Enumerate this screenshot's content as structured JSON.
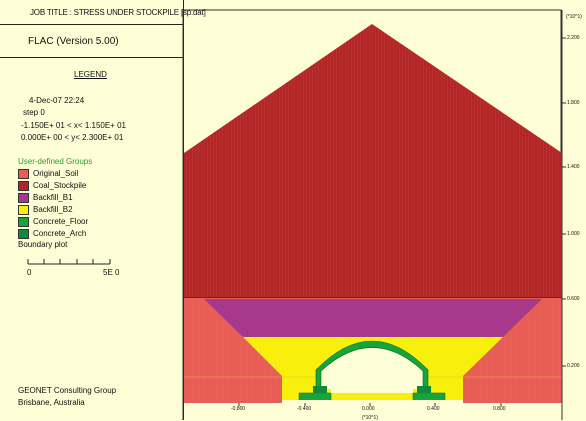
{
  "header": {
    "job_title": "JOB TITLE :   STRESS UNDER STOCKPILE  [sp.dat]"
  },
  "panel": {
    "app_name": "FLAC (Version 5.00)",
    "legend_title": "LEGEND",
    "date_line": "4-Dec-07  22:24",
    "step_line": "step      0",
    "x_range": "-1.150E+ 01 < x<   1.150E+ 01",
    "y_range": " 0.000E+ 00 < y<   2.300E+ 01",
    "groups_title": "User-defined Groups",
    "groups": [
      {
        "label": "Original_Soil",
        "color": "#e85e56"
      },
      {
        "label": "Coal_Stockpile",
        "color": "#b32626"
      },
      {
        "label": "Backfill_B1",
        "color": "#a6398c"
      },
      {
        "label": "Backfill_B2",
        "color": "#f7f00c"
      },
      {
        "label": "Concrete_Floor",
        "color": "#17a43a"
      },
      {
        "label": "Concrete_Arch",
        "color": "#0f8a3a"
      }
    ],
    "boundary_title": "Boundary plot",
    "scale_start": "0",
    "scale_end": "5E 0",
    "company": "GEONET Consulting Group",
    "location": "Brisbane, Australia"
  },
  "plot": {
    "axis_unit": "(*10^1)",
    "x_axis_unit": "(*10^1)",
    "x_ticks": [
      "-0.800",
      "-0.400",
      "0.000",
      "0.400",
      "0.800"
    ],
    "y_ticks": [
      "2.200",
      "1.800",
      "1.400",
      "1.000",
      "0.600",
      "0.200"
    ],
    "colors": {
      "background": "#fefed6",
      "stockpile": "#b32626",
      "soil": "#e85e56",
      "backfill_b1": "#a6398c",
      "backfill_b2": "#f7f00c",
      "concrete": "#17a43a",
      "mesh_line": "#e0a0a0"
    }
  }
}
